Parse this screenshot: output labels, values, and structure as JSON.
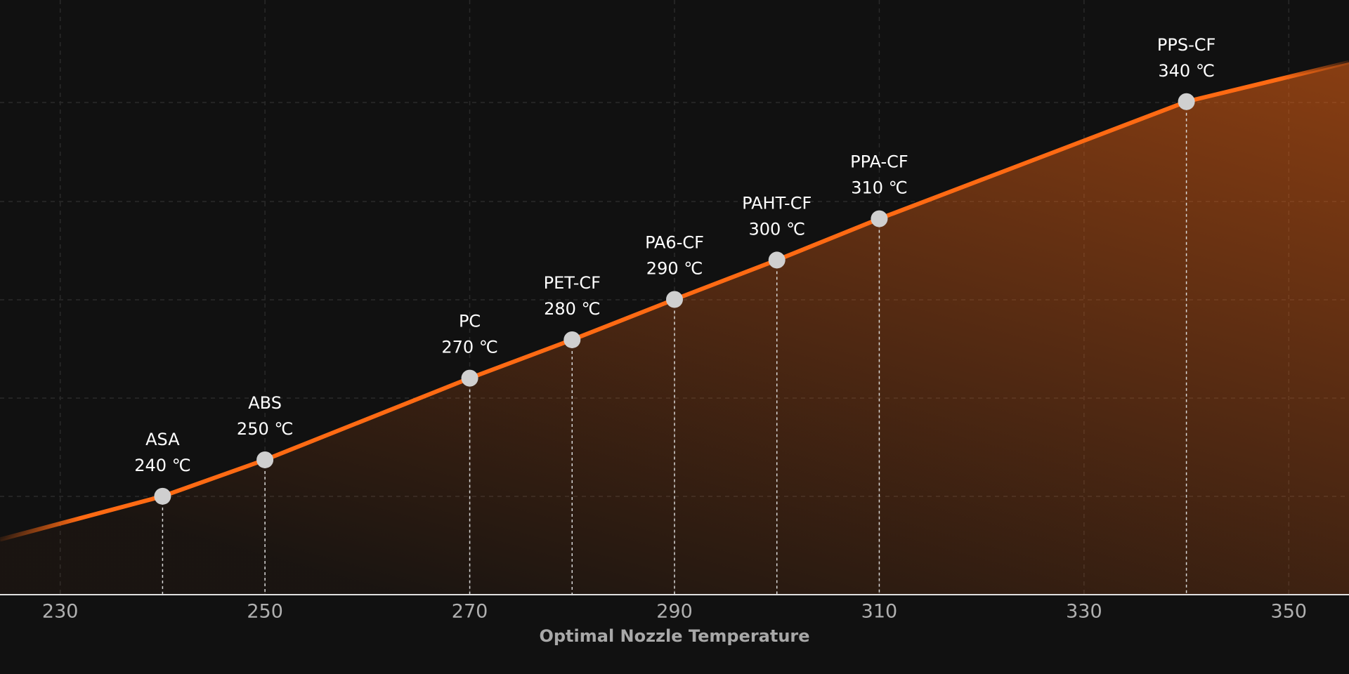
{
  "chart_data": {
    "type": "line",
    "x_label": "Optimal Nozzle Temperature",
    "x": [
      224.12,
      240,
      250,
      270,
      280,
      290,
      300,
      310,
      340,
      355.88
    ],
    "values": [
      0.56,
      1.0,
      1.37,
      2.2,
      2.59,
      3.0,
      3.4,
      3.82,
      5.01,
      5.41
    ],
    "names": [
      null,
      "ASA",
      "ABS",
      "PC",
      "PET-CF",
      "PA6-CF",
      "PAHT-CF",
      "PPA-CF",
      "PPS-CF",
      null
    ],
    "x_value_labels": [
      null,
      "240 ℃",
      "250 ℃",
      "270 ℃",
      "280 ℃",
      "290 ℃",
      "300 ℃",
      "310 ℃",
      "340 ℃",
      null
    ],
    "color": "#ff6a13",
    "xlim": [
      224.12,
      355.88
    ],
    "xticks": [
      230,
      250,
      270,
      290,
      310,
      330,
      350
    ],
    "ylim": [
      0,
      6
    ],
    "grid": true
  }
}
